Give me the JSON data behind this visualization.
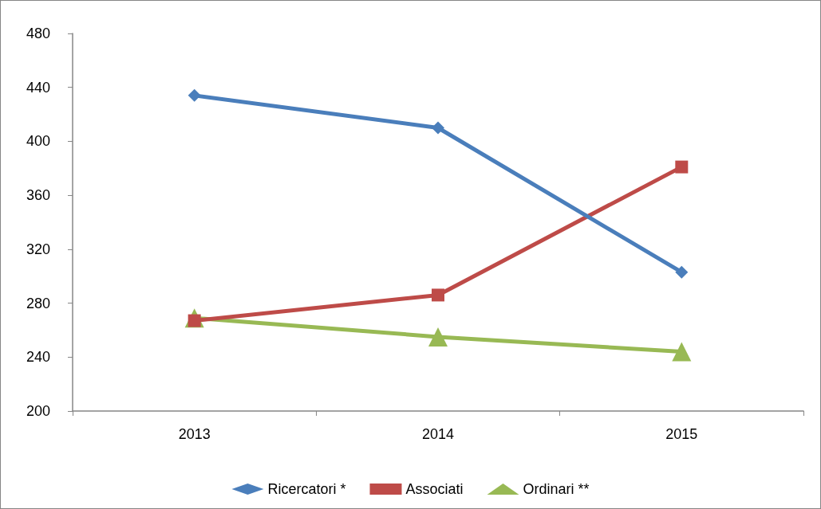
{
  "chart_data": {
    "type": "line",
    "categories": [
      "2013",
      "2014",
      "2015"
    ],
    "series": [
      {
        "name": "Ricercatori *",
        "color": "#4a7ebb",
        "values": [
          434,
          410,
          303
        ],
        "marker": "diamond"
      },
      {
        "name": "Associati",
        "color": "#be4b48",
        "values": [
          267,
          286,
          381
        ],
        "marker": "square"
      },
      {
        "name": "Ordinari **",
        "color": "#98b954",
        "values": [
          269,
          255,
          244
        ],
        "marker": "triangle"
      }
    ],
    "ylim": [
      200,
      480
    ],
    "yticks": [
      200,
      240,
      280,
      320,
      360,
      400,
      440,
      480
    ],
    "grid": false,
    "legend": "bottom",
    "line_style": "solid"
  }
}
